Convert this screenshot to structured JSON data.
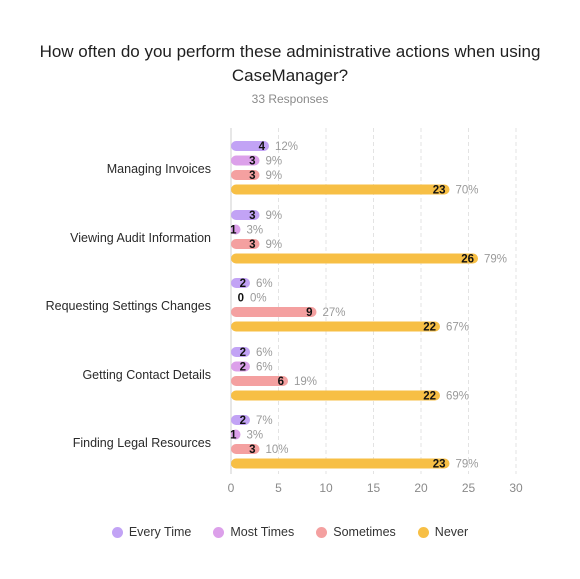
{
  "chart_data": {
    "type": "bar",
    "orientation": "horizontal",
    "title": "How often do you perform these administrative actions when using CaseManager?",
    "subtitle": "33 Responses",
    "categories": [
      "Managing Invoices",
      "Viewing Audit Information",
      "Requesting Settings Changes",
      "Getting Contact Details",
      "Finding Legal Resources"
    ],
    "series": [
      {
        "name": "Every Time",
        "color": "#c2a3f5",
        "values": [
          4,
          3,
          2,
          2,
          2
        ],
        "percents": [
          "12%",
          "9%",
          "6%",
          "6%",
          "7%"
        ]
      },
      {
        "name": "Most Times",
        "color": "#dca0ea",
        "values": [
          3,
          1,
          0,
          2,
          1
        ],
        "percents": [
          "9%",
          "3%",
          "0%",
          "6%",
          "3%"
        ]
      },
      {
        "name": "Sometimes",
        "color": "#f4a0a0",
        "values": [
          3,
          3,
          9,
          6,
          3
        ],
        "percents": [
          "9%",
          "9%",
          "27%",
          "19%",
          "10%"
        ]
      },
      {
        "name": "Never",
        "color": "#f7bf45",
        "values": [
          23,
          26,
          22,
          22,
          23
        ],
        "percents": [
          "70%",
          "79%",
          "67%",
          "69%",
          "79%"
        ]
      }
    ],
    "x_ticks": [
      0,
      5,
      10,
      15,
      20,
      25,
      30
    ],
    "xlim": [
      0,
      30
    ],
    "grid": true,
    "legend_position": "bottom"
  }
}
